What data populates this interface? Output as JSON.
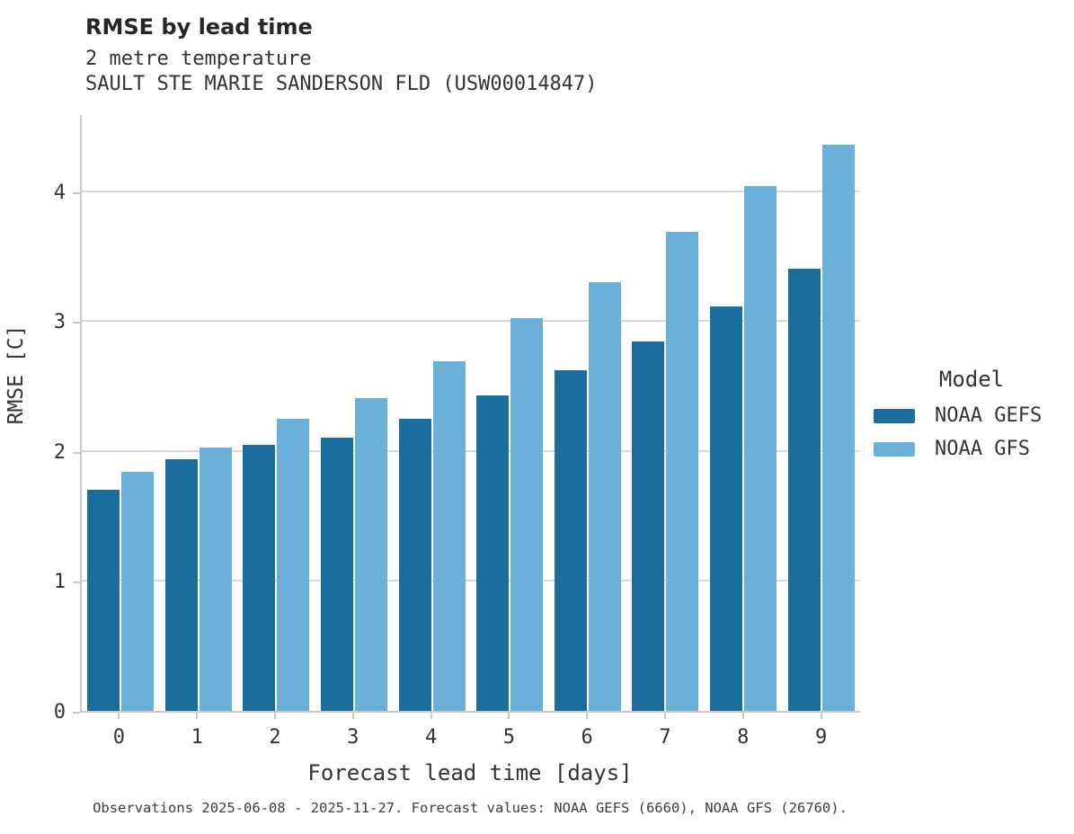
{
  "header": {
    "title": "RMSE by lead time",
    "subtitle": "2 metre temperature",
    "station": "SAULT STE MARIE SANDERSON FLD (USW00014847)"
  },
  "chart_data": {
    "type": "bar",
    "title": "RMSE by lead time",
    "subtitle": "2 metre temperature",
    "station": "SAULT STE MARIE SANDERSON FLD (USW00014847)",
    "categories": [
      "0",
      "1",
      "2",
      "3",
      "4",
      "5",
      "6",
      "7",
      "8",
      "9"
    ],
    "series": [
      {
        "name": "NOAA GEFS",
        "color": "#1b6d9e",
        "values": [
          1.7,
          1.94,
          2.05,
          2.1,
          2.25,
          2.43,
          2.62,
          2.84,
          3.11,
          3.4
        ]
      },
      {
        "name": "NOAA GFS",
        "color": "#6ab0d9",
        "values": [
          1.84,
          2.03,
          2.25,
          2.41,
          2.69,
          3.02,
          3.3,
          3.69,
          4.04,
          4.36
        ]
      }
    ],
    "xlabel": "Forecast lead time [days]",
    "ylabel": "RMSE [C]",
    "yticks": [
      0,
      1,
      2,
      3,
      4
    ],
    "ylim": [
      0,
      4.6
    ],
    "grid": "horizontal",
    "legend_position": "right"
  },
  "legend": {
    "title": "Model",
    "items": [
      {
        "label": "NOAA GEFS",
        "color": "#1b6d9e"
      },
      {
        "label": "NOAA GFS",
        "color": "#6ab0d9"
      }
    ]
  },
  "footer": {
    "caption": "Observations 2025-06-08 - 2025-11-27. Forecast values: NOAA GEFS (6660), NOAA GFS (26760)."
  }
}
